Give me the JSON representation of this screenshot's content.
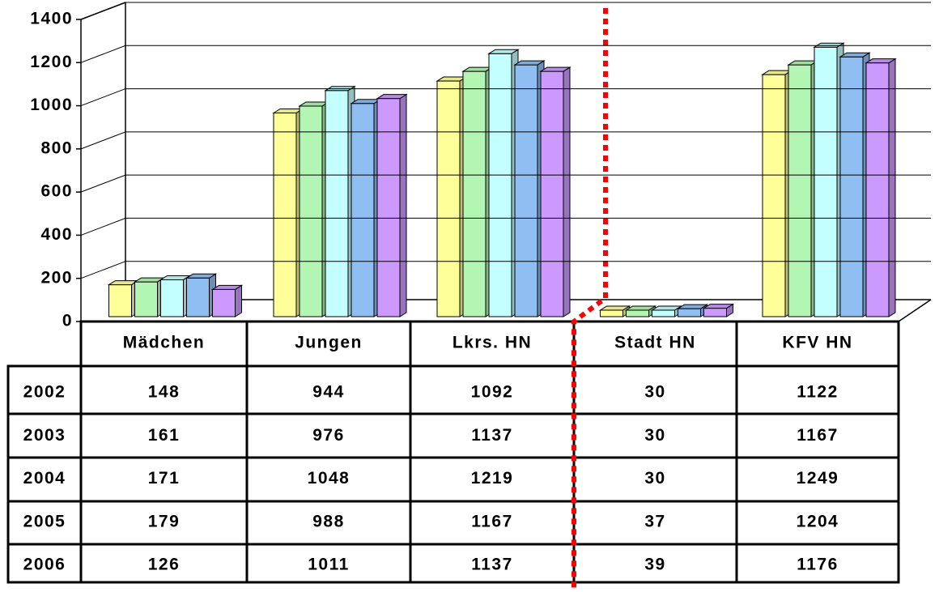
{
  "chart_data": {
    "type": "bar3d",
    "categories": [
      "Mädchen",
      "Jungen",
      "Lkrs. HN",
      "Stadt HN",
      "KFV HN"
    ],
    "series": [
      {
        "name": "2002",
        "color": "#ffff99",
        "values": [
          148,
          944,
          1092,
          30,
          1122
        ]
      },
      {
        "name": "2003",
        "color": "#b3f5b3",
        "values": [
          161,
          976,
          1137,
          30,
          1167
        ]
      },
      {
        "name": "2004",
        "color": "#c4ffff",
        "values": [
          171,
          1048,
          1219,
          30,
          1249
        ]
      },
      {
        "name": "2005",
        "color": "#8fbff2",
        "values": [
          179,
          988,
          1167,
          37,
          1204
        ]
      },
      {
        "name": "2006",
        "color": "#cc99ff",
        "values": [
          126,
          1011,
          1137,
          39,
          1176
        ]
      }
    ],
    "ylim": [
      0,
      1400
    ],
    "yticks": [
      0,
      200,
      400,
      600,
      800,
      1000,
      1200,
      1400
    ],
    "grid": true
  }
}
